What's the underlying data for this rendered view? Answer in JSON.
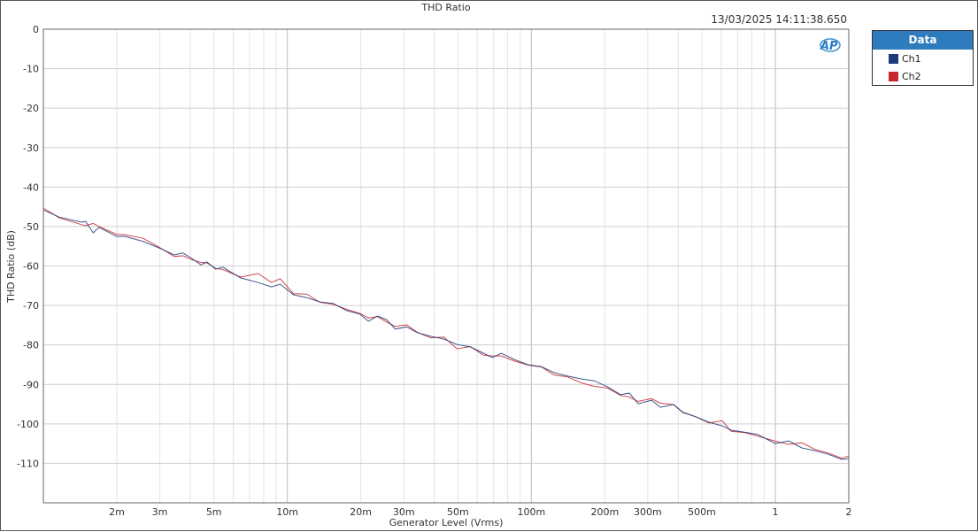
{
  "chart_data": {
    "type": "line",
    "title": "THD Ratio",
    "timestamp": "13/03/2025 14:11:38.650",
    "xlabel": "Generator Level (Vrms)",
    "ylabel": "THD Ratio (dB)",
    "x_scale": "log",
    "xlim": [
      0.001,
      2
    ],
    "ylim": [
      -120,
      0
    ],
    "grid": true,
    "legend_title": "Data",
    "legend_placement": "right",
    "yticks": [
      0,
      -10,
      -20,
      -30,
      -40,
      -50,
      -60,
      -70,
      -80,
      -90,
      -100,
      -110
    ],
    "ytick_labels": [
      "0",
      "-10",
      "-20",
      "-30",
      "-40",
      "-50",
      "-60",
      "-70",
      "-80",
      "-90",
      "-100",
      "-110"
    ],
    "xticks": [
      0.002,
      0.003,
      0.005,
      0.01,
      0.02,
      0.03,
      0.05,
      0.1,
      0.2,
      0.3,
      0.5,
      1,
      2
    ],
    "xtick_labels": [
      "2m",
      "3m",
      "5m",
      "10m",
      "20m",
      "30m",
      "50m",
      "100m",
      "200m",
      "300m",
      "500m",
      "1",
      "2"
    ],
    "x": [
      0.001,
      0.00116,
      0.00143,
      0.00149,
      0.0016,
      0.00169,
      0.002,
      0.00217,
      0.00257,
      0.00303,
      0.00344,
      0.00374,
      0.00406,
      0.00442,
      0.00468,
      0.00509,
      0.00544,
      0.00643,
      0.00759,
      0.00861,
      0.00935,
      0.0106,
      0.012,
      0.0136,
      0.0154,
      0.0175,
      0.0198,
      0.0215,
      0.0234,
      0.0255,
      0.0277,
      0.0308,
      0.0341,
      0.0386,
      0.0438,
      0.0496,
      0.0562,
      0.0637,
      0.0693,
      0.0753,
      0.0853,
      0.0968,
      0.11,
      0.124,
      0.141,
      0.16,
      0.181,
      0.205,
      0.232,
      0.252,
      0.274,
      0.311,
      0.338,
      0.383,
      0.417,
      0.472,
      0.535,
      0.606,
      0.659,
      0.747,
      0.847,
      1.0,
      1.133,
      1.284,
      1.456,
      1.649,
      1.87,
      2.0
    ],
    "series": [
      {
        "name": "Ch1",
        "color": "#1f3a7a",
        "values": [
          -45.8,
          -47.6,
          -48.9,
          -48.7,
          -51.6,
          -50.2,
          -52.5,
          -52.5,
          -53.8,
          -55.6,
          -57.2,
          -56.7,
          -58.1,
          -59.7,
          -59.0,
          -60.8,
          -60.3,
          -63.0,
          -64.2,
          -65.3,
          -64.6,
          -67.3,
          -68.0,
          -69.1,
          -69.5,
          -71.3,
          -72.2,
          -74.0,
          -72.7,
          -73.6,
          -76.0,
          -75.4,
          -76.9,
          -77.8,
          -78.5,
          -79.9,
          -80.5,
          -82.1,
          -83.2,
          -82.1,
          -83.7,
          -85.0,
          -85.5,
          -87.0,
          -87.9,
          -88.6,
          -89.1,
          -90.6,
          -92.6,
          -92.2,
          -94.9,
          -94.0,
          -95.8,
          -95.1,
          -97.1,
          -98.2,
          -99.6,
          -100.5,
          -101.6,
          -102.1,
          -102.7,
          -105.0,
          -104.3,
          -106.1,
          -106.8,
          -107.7,
          -109.0,
          -108.8
        ]
      },
      {
        "name": "Ch2",
        "color": "#c8282d",
        "values": [
          -45.3,
          -47.8,
          -49.5,
          -49.8,
          -49.2,
          -50.0,
          -52.0,
          -52.1,
          -53.0,
          -55.5,
          -57.6,
          -57.4,
          -58.4,
          -59.1,
          -59.2,
          -60.6,
          -60.9,
          -62.8,
          -61.9,
          -64.2,
          -63.2,
          -67.0,
          -67.1,
          -69.2,
          -69.7,
          -71.0,
          -72.0,
          -73.2,
          -72.8,
          -74.2,
          -75.3,
          -74.9,
          -76.8,
          -78.2,
          -78.0,
          -81.0,
          -80.4,
          -82.6,
          -82.8,
          -82.8,
          -84.1,
          -85.1,
          -85.6,
          -87.6,
          -88.1,
          -89.6,
          -90.5,
          -90.9,
          -92.8,
          -93.2,
          -94.3,
          -93.6,
          -94.8,
          -95.1,
          -97.0,
          -98.2,
          -99.8,
          -99.2,
          -101.9,
          -102.2,
          -103.1,
          -104.4,
          -105.2,
          -104.8,
          -106.5,
          -107.4,
          -108.7,
          -108.2
        ]
      }
    ]
  },
  "logo": "AP"
}
